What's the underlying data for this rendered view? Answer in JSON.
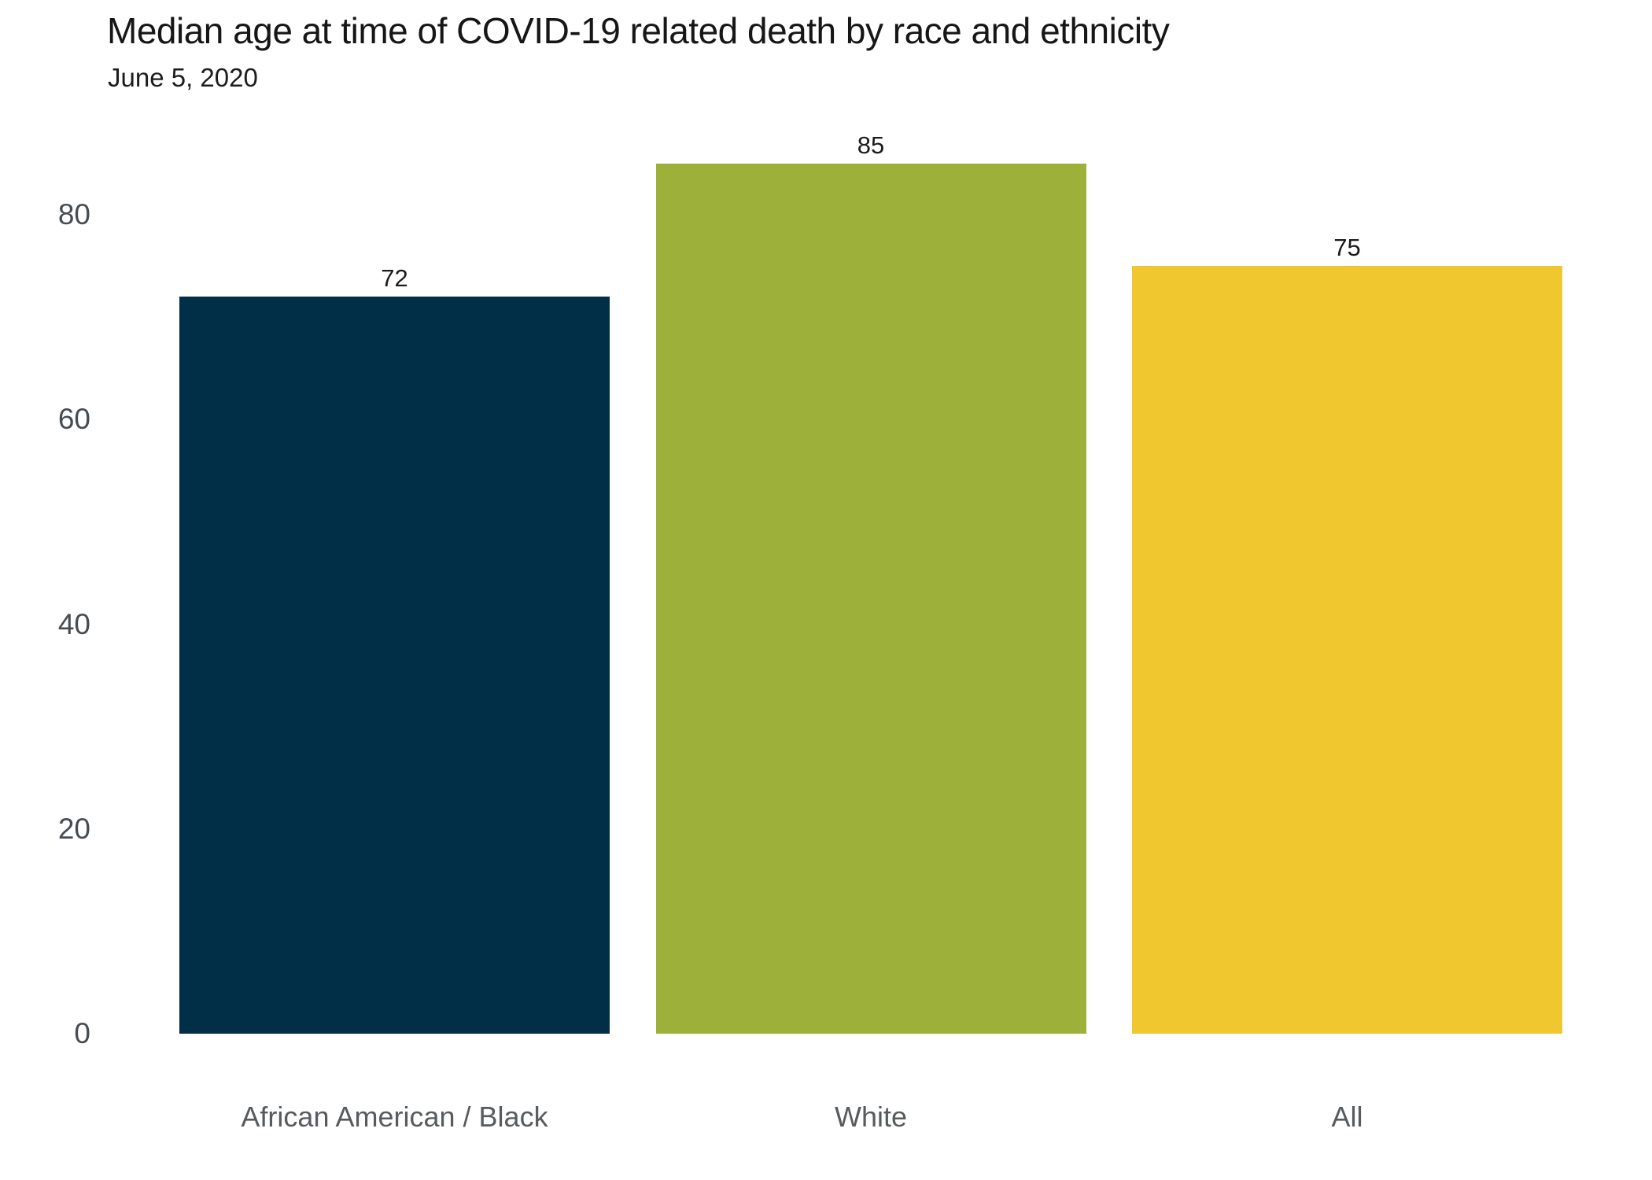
{
  "header": {
    "title": "Median age at time of COVID-19 related death by race and ethnicity",
    "subtitle": "June 5, 2020"
  },
  "chart_data": {
    "type": "bar",
    "title": "Median age at time of COVID-19 related death by race and ethnicity",
    "subtitle": "June 5, 2020",
    "categories": [
      "African American / Black",
      "White",
      "All"
    ],
    "values": [
      72,
      85,
      75
    ],
    "data_labels": [
      "72",
      "85",
      "75"
    ],
    "bar_colors": [
      "#002f47",
      "#9cb03a",
      "#f0c72e"
    ],
    "yticks": [
      0,
      20,
      40,
      60,
      80
    ],
    "ylim": [
      0,
      85
    ],
    "xlabel": "",
    "ylabel": "",
    "grid": false,
    "legend": false,
    "orientation": "vertical"
  }
}
